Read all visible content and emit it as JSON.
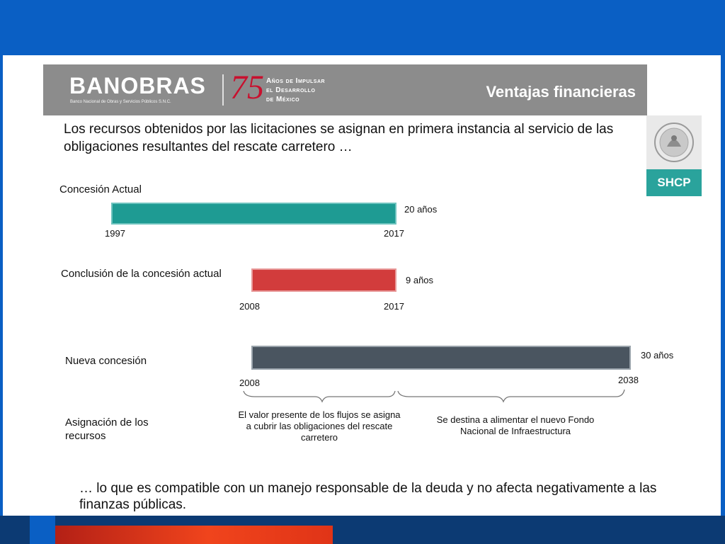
{
  "header": {
    "logo": "BANOBRAS",
    "logo_subtitle": "Banco Nacional de Obras y Servicios Públicos S.N.C.",
    "anniversary_number": "75",
    "anniversary_line1": "Años de Impulsar",
    "anniversary_line2": "el Desarrollo",
    "anniversary_line3": "de México",
    "title": "Ventajas financieras"
  },
  "shcp": {
    "label": "SHCP",
    "icon": "mexican-coat-of-arms-icon"
  },
  "intro": "Los recursos obtenidos por las licitaciones se asignan en primera instancia al servicio de las obligaciones resultantes del rescate carretero …",
  "timelines": [
    {
      "label": "Concesión Actual",
      "start": "1997",
      "end": "2017",
      "duration": "20 años",
      "color": "#1e9b93"
    },
    {
      "label": "Conclusión de la concesión actual",
      "start": "2008",
      "end": "2017",
      "duration": "9 años",
      "color": "#d23c3c"
    },
    {
      "label": "Nueva concesión",
      "start": "2008",
      "end": "2038",
      "duration": "30 años",
      "color": "#4a5560"
    }
  ],
  "allocation": {
    "label": "Asignación de los recursos",
    "note_left": "El valor presente de los flujos se asigna a cubrir las obligaciones del rescate carretero",
    "note_right": "Se destina a alimentar el nuevo Fondo Nacional de Infraestructura"
  },
  "closing": "… lo que es compatible con un manejo responsable de la deuda y no afecta negativamente a las finanzas públicas."
}
